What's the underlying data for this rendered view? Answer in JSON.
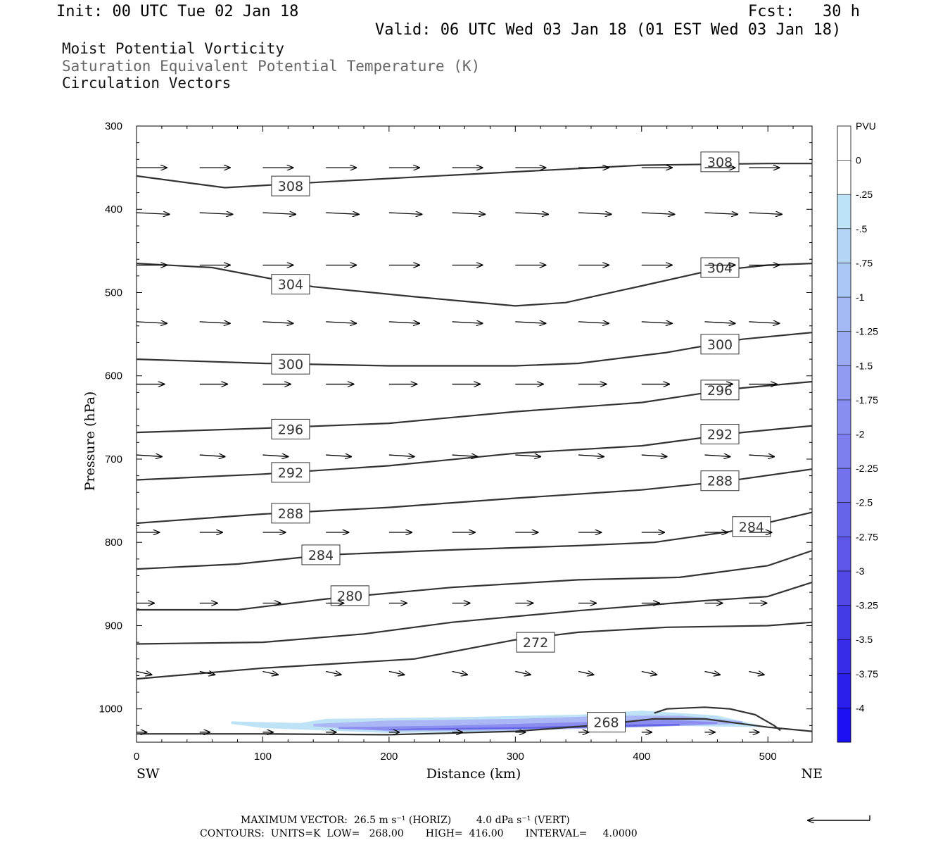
{
  "header": {
    "init": "Init: 00 UTC Tue 02 Jan 18",
    "fcst": "Fcst:   30 h",
    "valid": "Valid: 06 UTC Wed 03 Jan 18 (01 EST Wed 03 Jan 18)",
    "titles": [
      "Moist Potential Vorticity",
      "Saturation Equivalent Potential Temperature (K)",
      "Circulation Vectors"
    ]
  },
  "footer": {
    "max_vector": "MAXIMUM VECTOR:  26.5 m s⁻¹ (HORIZ)        4.0 dPa s⁻¹ (VERT)",
    "contours": "CONTOURS:  UNITS=K  LOW=   268.00       HIGH=  416.00       INTERVAL=     4.0000"
  },
  "colors": {
    "contour": "#333333",
    "vector": "#000000",
    "pv_fill_light": "#bfe3f6",
    "pv_fill_mid": "#9aa8f2",
    "pv_fill_dark": "#5a5ae8"
  },
  "chart_data": {
    "type": "cross-section",
    "xlabel": "Distance (km)",
    "ylabel": "Pressure (hPa)",
    "xlim": [
      0,
      535
    ],
    "ylim": [
      300,
      1040
    ],
    "y_inverted": true,
    "x_ticks": [
      0,
      100,
      200,
      300,
      400,
      500
    ],
    "y_ticks": [
      300,
      400,
      500,
      600,
      700,
      800,
      900,
      1000
    ],
    "x_end_labels": {
      "left": "SW",
      "right": "NE"
    },
    "contours_thetae_K": [
      {
        "level": 308,
        "label_at": [
          [
            122,
            372
          ],
          [
            462,
            343
          ]
        ],
        "points": [
          [
            0,
            360
          ],
          [
            70,
            374
          ],
          [
            150,
            367
          ],
          [
            300,
            355
          ],
          [
            400,
            347
          ],
          [
            500,
            345
          ],
          [
            535,
            345
          ]
        ]
      },
      {
        "level": 304,
        "label_at": [
          [
            122,
            490
          ],
          [
            462,
            470
          ]
        ],
        "points": [
          [
            0,
            465
          ],
          [
            60,
            470
          ],
          [
            140,
            493
          ],
          [
            220,
            505
          ],
          [
            300,
            516
          ],
          [
            340,
            512
          ],
          [
            400,
            492
          ],
          [
            450,
            475
          ],
          [
            500,
            467
          ],
          [
            535,
            465
          ]
        ]
      },
      {
        "level": 300,
        "label_at": [
          [
            122,
            586
          ],
          [
            462,
            562
          ]
        ],
        "points": [
          [
            0,
            580
          ],
          [
            100,
            585
          ],
          [
            200,
            588
          ],
          [
            300,
            588
          ],
          [
            350,
            585
          ],
          [
            420,
            572
          ],
          [
            480,
            556
          ],
          [
            535,
            548
          ]
        ]
      },
      {
        "level": 296,
        "label_at": [
          [
            122,
            664
          ],
          [
            462,
            617
          ]
        ],
        "points": [
          [
            0,
            668
          ],
          [
            100,
            663
          ],
          [
            200,
            657
          ],
          [
            300,
            643
          ],
          [
            400,
            632
          ],
          [
            470,
            616
          ],
          [
            535,
            607
          ]
        ]
      },
      {
        "level": 292,
        "label_at": [
          [
            122,
            716
          ],
          [
            462,
            670
          ]
        ],
        "points": [
          [
            0,
            725
          ],
          [
            100,
            718
          ],
          [
            200,
            708
          ],
          [
            300,
            693
          ],
          [
            400,
            684
          ],
          [
            480,
            668
          ],
          [
            535,
            660
          ]
        ]
      },
      {
        "level": 288,
        "label_at": [
          [
            122,
            765
          ],
          [
            462,
            726
          ]
        ],
        "points": [
          [
            0,
            777
          ],
          [
            100,
            766
          ],
          [
            200,
            758
          ],
          [
            300,
            747
          ],
          [
            400,
            737
          ],
          [
            470,
            726
          ],
          [
            535,
            712
          ]
        ]
      },
      {
        "level": 284,
        "label_at": [
          [
            146,
            815
          ],
          [
            487,
            781
          ]
        ],
        "points": [
          [
            0,
            832
          ],
          [
            80,
            826
          ],
          [
            150,
            815
          ],
          [
            250,
            809
          ],
          [
            350,
            804
          ],
          [
            410,
            800
          ],
          [
            470,
            787
          ],
          [
            535,
            764
          ]
        ]
      },
      {
        "level": 280,
        "label_at": [
          [
            169,
            864
          ]
        ],
        "points": [
          [
            0,
            881
          ],
          [
            80,
            881
          ],
          [
            150,
            868
          ],
          [
            250,
            854
          ],
          [
            350,
            845
          ],
          [
            430,
            842
          ],
          [
            500,
            828
          ],
          [
            535,
            810
          ]
        ]
      },
      {
        "level": 276,
        "label_at": [],
        "points": [
          [
            0,
            922
          ],
          [
            100,
            920
          ],
          [
            180,
            910
          ],
          [
            250,
            896
          ],
          [
            350,
            882
          ],
          [
            450,
            870
          ],
          [
            500,
            865
          ],
          [
            535,
            848
          ]
        ]
      },
      {
        "level": 272,
        "label_at": [
          [
            316,
            920
          ]
        ],
        "points": [
          [
            0,
            964
          ],
          [
            100,
            951
          ],
          [
            220,
            940
          ],
          [
            300,
            917
          ],
          [
            350,
            908
          ],
          [
            420,
            902
          ],
          [
            500,
            900
          ],
          [
            535,
            896
          ]
        ]
      },
      {
        "level": 268,
        "label_at": [
          [
            372,
            1016
          ]
        ],
        "points": [
          [
            0,
            1030
          ],
          [
            100,
            1030
          ],
          [
            200,
            1031
          ],
          [
            300,
            1027
          ],
          [
            360,
            1020
          ],
          [
            410,
            1012
          ],
          [
            450,
            1012
          ],
          [
            500,
            1022
          ],
          [
            535,
            1027
          ]
        ]
      },
      {
        "level": 268,
        "label_at": [],
        "points": [
          [
            410,
            1005
          ],
          [
            420,
            1000
          ],
          [
            450,
            998
          ],
          [
            470,
            1000
          ],
          [
            490,
            1007
          ],
          [
            505,
            1020
          ],
          [
            510,
            1026
          ]
        ]
      }
    ],
    "circulation_vectors": [
      {
        "p": 350,
        "x0": [
          0,
          50,
          100,
          150,
          200,
          250,
          300,
          350,
          400,
          450,
          485
        ],
        "dx": 24,
        "dy_hPa": 0
      },
      {
        "p": 404,
        "x0": [
          0,
          50,
          100,
          150,
          200,
          250,
          300,
          350,
          400,
          450,
          485
        ],
        "dx": 26,
        "dy_hPa": 2
      },
      {
        "p": 467,
        "x0": [
          0,
          50,
          100,
          150,
          200,
          250,
          300,
          350,
          400,
          450,
          485
        ],
        "dx": 24,
        "dy_hPa": 0
      },
      {
        "p": 535,
        "x0": [
          0,
          50,
          100,
          150,
          200,
          250,
          300,
          350,
          400,
          450,
          485
        ],
        "dx": 24,
        "dy_hPa": 2
      },
      {
        "p": 610,
        "x0": [
          0,
          50,
          100,
          150,
          200,
          250,
          300,
          350,
          400,
          450,
          485
        ],
        "dx": 22,
        "dy_hPa": 0
      },
      {
        "p": 695,
        "x0": [
          0,
          50,
          100,
          150,
          200,
          250,
          300,
          350,
          400,
          450,
          485
        ],
        "dx": 20,
        "dy_hPa": 2
      },
      {
        "p": 788,
        "x0": [
          0,
          50,
          100,
          150,
          200,
          250,
          300,
          350,
          400,
          450,
          485
        ],
        "dx": 18,
        "dy_hPa": 0
      },
      {
        "p": 873,
        "x0": [
          0,
          50,
          100,
          150,
          200,
          250,
          300,
          350,
          400,
          450,
          485
        ],
        "dx": 14,
        "dy_hPa": 0
      },
      {
        "p": 955,
        "x0": [
          0,
          50,
          100,
          150,
          200,
          250,
          300,
          350,
          400,
          450,
          485
        ],
        "dx": 12,
        "dy_hPa": 4
      },
      {
        "p": 1028,
        "x0": [
          0,
          50,
          100,
          150,
          200,
          250,
          300,
          350,
          400,
          450,
          485
        ],
        "dx": 8,
        "dy_hPa": 0
      }
    ],
    "pv_shading": {
      "units": "PVU",
      "region_x_km": [
        75,
        500
      ],
      "region_p_hPa": [
        1003,
        1030
      ],
      "bands": [
        {
          "pv": -0.25,
          "color": "#bfe3f6",
          "top": [
            [
              75,
              1015
            ],
            [
              130,
              1017
            ],
            [
              150,
              1012
            ],
            [
              250,
              1010
            ],
            [
              350,
              1007
            ],
            [
              400,
              1002
            ],
            [
              460,
              1008
            ],
            [
              500,
              1022
            ]
          ],
          "bottom": [
            [
              500,
              1022
            ],
            [
              400,
              1020
            ],
            [
              300,
              1027
            ],
            [
              200,
              1029
            ],
            [
              100,
              1023
            ],
            [
              75,
              1018
            ]
          ]
        },
        {
          "pv": -1.0,
          "color": "#aab7f4",
          "top": [
            [
              140,
              1018
            ],
            [
              200,
              1014
            ],
            [
              300,
              1012
            ],
            [
              380,
              1008
            ],
            [
              430,
              1008
            ],
            [
              480,
              1015
            ]
          ],
          "bottom": [
            [
              480,
              1018
            ],
            [
              400,
              1022
            ],
            [
              300,
              1026
            ],
            [
              200,
              1027
            ],
            [
              140,
              1021
            ]
          ]
        },
        {
          "pv": -2.0,
          "color": "#8b8ef0",
          "top": [
            [
              160,
              1022
            ],
            [
              250,
              1020
            ],
            [
              350,
              1016
            ],
            [
              420,
              1013
            ],
            [
              460,
              1016
            ]
          ],
          "bottom": [
            [
              460,
              1018
            ],
            [
              400,
              1021
            ],
            [
              300,
              1024
            ],
            [
              200,
              1026
            ],
            [
              160,
              1024
            ]
          ]
        },
        {
          "pv": -2.75,
          "color": "#6565e6",
          "top": [
            [
              200,
              1024
            ],
            [
              300,
              1022
            ],
            [
              380,
              1019
            ],
            [
              430,
              1018
            ]
          ],
          "bottom": [
            [
              430,
              1020
            ],
            [
              350,
              1023
            ],
            [
              250,
              1025
            ],
            [
              200,
              1025
            ]
          ]
        }
      ]
    },
    "colorbar": {
      "unit_label": "PVU",
      "labels": [
        "0",
        "-.25",
        "-.5",
        "-.75",
        "-1",
        "-1.25",
        "-1.5",
        "-1.75",
        "-2",
        "-2.25",
        "-2.5",
        "-2.75",
        "-3",
        "-3.25",
        "-3.5",
        "-3.75",
        "-4"
      ],
      "colors": [
        "#ffffff",
        "#ffffff",
        "#bfe3f6",
        "#b4d5f5",
        "#aac7f5",
        "#a3b9f4",
        "#9aaaf3",
        "#919bf2",
        "#888df0",
        "#7e7eee",
        "#7371ec",
        "#6864ea",
        "#5d56e8",
        "#5148e6",
        "#443be6",
        "#372de8",
        "#2a1fec",
        "#1a10f2"
      ]
    },
    "reference_vector": {
      "direction": "left"
    }
  }
}
